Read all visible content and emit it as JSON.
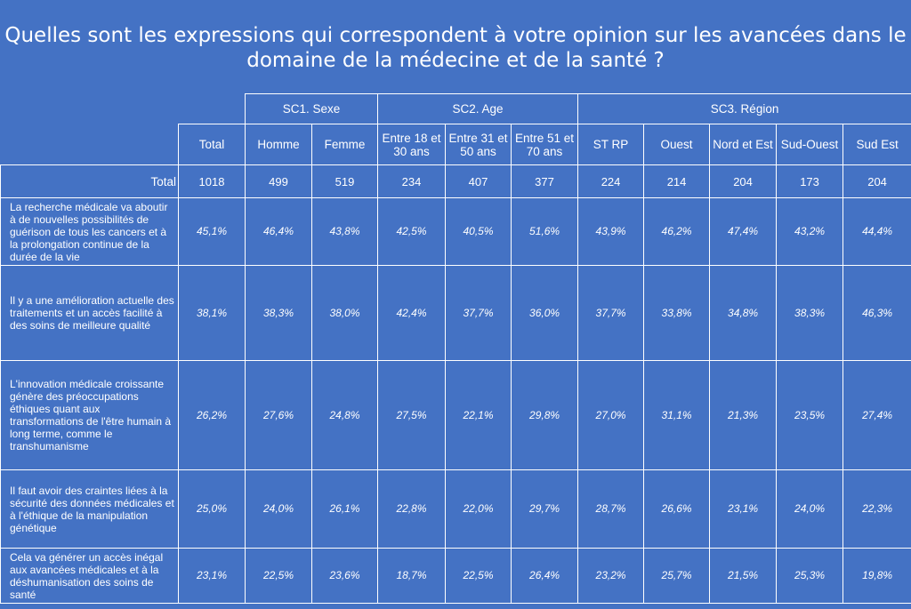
{
  "chart_data": {
    "type": "table",
    "title": "Quelles sont les expressions qui correspondent à votre opinion sur les avancées dans le domaine de la médecine et de la santé ?",
    "groups": [
      {
        "label": "SC1. Sexe",
        "span": 2
      },
      {
        "label": "SC2. Age",
        "span": 3
      },
      {
        "label": "SC3. Région",
        "span": 5
      }
    ],
    "columns": [
      "Total",
      "Homme",
      "Femme",
      "Entre 18 et 30 ans",
      "Entre 31 et 50 ans",
      "Entre 51 et 70 ans",
      "ST RP",
      "Ouest",
      "Nord et Est",
      "Sud-Ouest",
      "Sud Est"
    ],
    "total_row": {
      "label": "Total",
      "values": [
        "1018",
        "499",
        "519",
        "234",
        "407",
        "377",
        "224",
        "214",
        "204",
        "173",
        "204"
      ]
    },
    "rows": [
      {
        "label": "La recherche médicale va aboutir à de nouvelles possibilités de guérison de tous les cancers et à la prolongation continue de la durée de la vie",
        "values": [
          "45,1%",
          "46,4%",
          "43,8%",
          "42,5%",
          "40,5%",
          "51,6%",
          "43,9%",
          "46,2%",
          "47,4%",
          "43,2%",
          "44,4%"
        ]
      },
      {
        "label": "Il y a une amélioration actuelle des traitements et un accès facilité à des soins de meilleure qualité",
        "values": [
          "38,1%",
          "38,3%",
          "38,0%",
          "42,4%",
          "37,7%",
          "36,0%",
          "37,7%",
          "33,8%",
          "34,8%",
          "38,3%",
          "46,3%"
        ]
      },
      {
        "label": "L'innovation médicale croissante génère des préoccupations éthiques quant aux transformations de l'être humain à long terme, comme le transhumanisme",
        "values": [
          "26,2%",
          "27,6%",
          "24,8%",
          "27,5%",
          "22,1%",
          "29,8%",
          "27,0%",
          "31,1%",
          "21,3%",
          "23,5%",
          "27,4%"
        ]
      },
      {
        "label": "Il faut avoir des craintes liées à la sécurité des données médicales et à l'éthique de la manipulation génétique",
        "values": [
          "25,0%",
          "24,0%",
          "26,1%",
          "22,8%",
          "22,0%",
          "29,7%",
          "28,7%",
          "26,6%",
          "23,1%",
          "24,0%",
          "22,3%"
        ]
      },
      {
        "label": "Cela va générer un accès inégal aux avancées médicales et à la déshumanisation des soins de santé",
        "values": [
          "23,1%",
          "22,5%",
          "23,6%",
          "18,7%",
          "22,5%",
          "26,4%",
          "23,2%",
          "25,7%",
          "21,5%",
          "25,3%",
          "19,8%"
        ]
      }
    ]
  }
}
